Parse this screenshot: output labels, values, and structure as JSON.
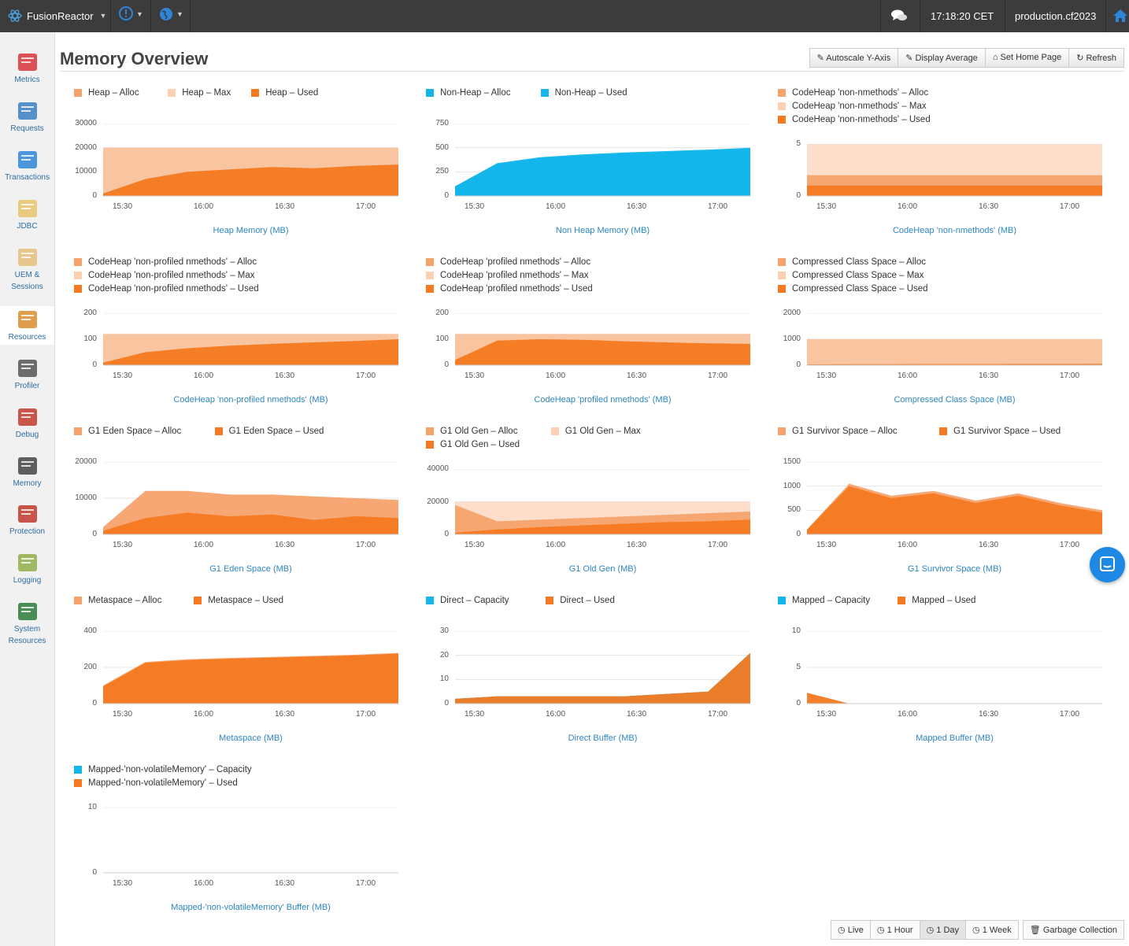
{
  "topbar": {
    "brand": "FusionReactor",
    "time": "17:18:20 CET",
    "instance": "production.cf2023",
    "icons": [
      "atom-icon",
      "alert-bubble-icon",
      "globe-icon",
      "chat-icon",
      "home-icon"
    ]
  },
  "sidebar": {
    "items": [
      {
        "label": "Metrics",
        "icon": "metrics-chart-icon"
      },
      {
        "label": "Requests",
        "icon": "requests-icon"
      },
      {
        "label": "Transactions",
        "icon": "transactions-arrows-icon"
      },
      {
        "label": "JDBC",
        "icon": "database-icon"
      },
      {
        "label": "UEM &",
        "label2": "Sessions",
        "icon": "user-icon"
      },
      {
        "label": "Resources",
        "icon": "gauge-icon"
      },
      {
        "label": "Profiler",
        "icon": "stopwatch-icon"
      },
      {
        "label": "Debug",
        "icon": "bug-target-icon"
      },
      {
        "label": "Memory",
        "icon": "memory-chip-icon"
      },
      {
        "label": "Protection",
        "icon": "shield-icon"
      },
      {
        "label": "Logging",
        "icon": "log-file-icon"
      },
      {
        "label": "System",
        "label2": "Resources",
        "icon": "system-monitor-icon"
      }
    ]
  },
  "page": {
    "title": "Memory Overview"
  },
  "toolbar": {
    "autoscale": "Autoscale Y-Axis",
    "display_average": "Display Average",
    "set_home": "Set Home Page",
    "refresh": "Refresh"
  },
  "bottom": {
    "live": "Live",
    "hour": "1 Hour",
    "day": "1 Day",
    "week": "1 Week",
    "gc": "Garbage Collection"
  },
  "colors": {
    "alloc": "#f6a26b",
    "max": "#fbd0b3",
    "used": "#f47920",
    "blue": "#13b5ea",
    "dark_used": "#d9823c"
  },
  "chart_data": [
    {
      "type": "area",
      "title": "Heap Memory (MB)",
      "x_ticks": [
        "15:30",
        "16:00",
        "16:30",
        "17:00"
      ],
      "y_ticks": [
        "30000",
        "20000",
        "10000",
        "0"
      ],
      "ylim": [
        0,
        30000
      ],
      "series": [
        {
          "name": "Heap – Alloc",
          "color": "#f6a26b",
          "values": [
            20000,
            20000,
            20000,
            20000,
            20000,
            20000,
            20000,
            20000
          ]
        },
        {
          "name": "Heap – Max",
          "color": "#fbd0b3",
          "values": [
            20000,
            20000,
            20000,
            20000,
            20000,
            20000,
            20000,
            20000
          ]
        },
        {
          "name": "Heap – Used",
          "color": "#f47920",
          "values": [
            1000,
            7000,
            10000,
            11000,
            12000,
            11500,
            12500,
            13000
          ]
        }
      ]
    },
    {
      "type": "area",
      "title": "Non Heap Memory (MB)",
      "x_ticks": [
        "15:30",
        "16:00",
        "16:30",
        "17:00"
      ],
      "y_ticks": [
        "750",
        "500",
        "250",
        "0"
      ],
      "ylim": [
        0,
        750
      ],
      "series": [
        {
          "name": "Non-Heap – Alloc",
          "color": "#13b5ea",
          "values": [
            100,
            340,
            400,
            430,
            450,
            465,
            480,
            500
          ]
        },
        {
          "name": "Non-Heap – Used",
          "color": "#13b5ea",
          "values": [
            100,
            330,
            390,
            420,
            440,
            455,
            470,
            490
          ]
        }
      ]
    },
    {
      "type": "area",
      "title": "CodeHeap 'non-nmethods' (MB)",
      "x_ticks": [
        "15:30",
        "16:00",
        "16:30",
        "17:00"
      ],
      "y_ticks": [
        "5",
        "0"
      ],
      "ylim": [
        0,
        5
      ],
      "series": [
        {
          "name": "CodeHeap 'non-nmethods' – Alloc",
          "color": "#f6a26b",
          "values": [
            2,
            2,
            2,
            2,
            2,
            2,
            2,
            2
          ]
        },
        {
          "name": "CodeHeap 'non-nmethods' – Max",
          "color": "#fbd0b3",
          "values": [
            5,
            5,
            5,
            5,
            5,
            5,
            5,
            5
          ]
        },
        {
          "name": "CodeHeap 'non-nmethods' – Used",
          "color": "#f47920",
          "values": [
            1,
            1,
            1,
            1,
            1,
            1,
            1,
            1
          ]
        }
      ]
    },
    {
      "type": "area",
      "title": "CodeHeap 'non-profiled nmethods' (MB)",
      "x_ticks": [
        "15:30",
        "16:00",
        "16:30",
        "17:00"
      ],
      "y_ticks": [
        "200",
        "100",
        "0"
      ],
      "ylim": [
        0,
        200
      ],
      "series": [
        {
          "name": "CodeHeap 'non-profiled nmethods' – Alloc",
          "color": "#f6a26b",
          "values": [
            120,
            120,
            120,
            120,
            120,
            120,
            120,
            120
          ]
        },
        {
          "name": "CodeHeap 'non-profiled nmethods' – Max",
          "color": "#fbd0b3",
          "values": [
            120,
            120,
            120,
            120,
            120,
            120,
            120,
            120
          ]
        },
        {
          "name": "CodeHeap 'non-profiled nmethods' – Used",
          "color": "#f47920",
          "values": [
            10,
            50,
            65,
            75,
            82,
            88,
            93,
            100
          ]
        }
      ]
    },
    {
      "type": "area",
      "title": "CodeHeap 'profiled nmethods' (MB)",
      "x_ticks": [
        "15:30",
        "16:00",
        "16:30",
        "17:00"
      ],
      "y_ticks": [
        "200",
        "100",
        "0"
      ],
      "ylim": [
        0,
        200
      ],
      "series": [
        {
          "name": "CodeHeap 'profiled nmethods' – Alloc",
          "color": "#f6a26b",
          "values": [
            120,
            120,
            120,
            120,
            120,
            120,
            120,
            120
          ]
        },
        {
          "name": "CodeHeap 'profiled nmethods' – Max",
          "color": "#fbd0b3",
          "values": [
            120,
            120,
            120,
            120,
            120,
            120,
            120,
            120
          ]
        },
        {
          "name": "CodeHeap 'profiled nmethods' – Used",
          "color": "#f47920",
          "values": [
            20,
            95,
            100,
            98,
            92,
            88,
            84,
            82
          ]
        }
      ]
    },
    {
      "type": "area",
      "title": "Compressed Class Space (MB)",
      "x_ticks": [
        "15:30",
        "16:00",
        "16:30",
        "17:00"
      ],
      "y_ticks": [
        "2000",
        "1000",
        "0"
      ],
      "ylim": [
        0,
        2000
      ],
      "series": [
        {
          "name": "Compressed Class Space – Alloc",
          "color": "#f6a26b",
          "values": [
            1000,
            1000,
            1000,
            1000,
            1000,
            1000,
            1000,
            1000
          ]
        },
        {
          "name": "Compressed Class Space – Max",
          "color": "#fbd0b3",
          "values": [
            1000,
            1000,
            1000,
            1000,
            1000,
            1000,
            1000,
            1000
          ]
        },
        {
          "name": "Compressed Class Space – Used",
          "color": "#f47920",
          "values": [
            30,
            40,
            40,
            45,
            45,
            48,
            48,
            50
          ]
        }
      ]
    },
    {
      "type": "area",
      "title": "G1 Eden Space (MB)",
      "x_ticks": [
        "15:30",
        "16:00",
        "16:30",
        "17:00"
      ],
      "y_ticks": [
        "20000",
        "10000",
        "0"
      ],
      "ylim": [
        0,
        20000
      ],
      "series": [
        {
          "name": "G1 Eden Space – Alloc",
          "color": "#f6a26b",
          "values": [
            2000,
            12000,
            12000,
            11000,
            11000,
            10500,
            10000,
            9500
          ]
        },
        {
          "name": "G1 Eden Space – Used",
          "color": "#f47920",
          "values": [
            1000,
            4500,
            6000,
            5000,
            5500,
            4000,
            5000,
            4500
          ]
        }
      ]
    },
    {
      "type": "area",
      "title": "G1 Old Gen (MB)",
      "x_ticks": [
        "15:30",
        "16:00",
        "16:30",
        "17:00"
      ],
      "y_ticks": [
        "40000",
        "20000",
        "0"
      ],
      "ylim": [
        0,
        40000
      ],
      "series": [
        {
          "name": "G1 Old Gen – Alloc",
          "color": "#f6a26b",
          "values": [
            18000,
            8000,
            9000,
            10000,
            11000,
            12000,
            13000,
            14000
          ]
        },
        {
          "name": "G1 Old Gen – Max",
          "color": "#fbd0b3",
          "values": [
            20000,
            20000,
            20000,
            20000,
            20000,
            20000,
            20000,
            20000
          ]
        },
        {
          "name": "G1 Old Gen – Used",
          "color": "#f47920",
          "values": [
            1000,
            3000,
            4500,
            5500,
            6500,
            7500,
            8000,
            9000
          ]
        }
      ]
    },
    {
      "type": "area",
      "title": "G1 Survivor Space (MB)",
      "x_ticks": [
        "15:30",
        "16:00",
        "16:30",
        "17:00"
      ],
      "y_ticks": [
        "1500",
        "1000",
        "500",
        "0"
      ],
      "ylim": [
        0,
        1500
      ],
      "series": [
        {
          "name": "G1 Survivor Space – Alloc",
          "color": "#f6a26b",
          "values": [
            100,
            1050,
            800,
            900,
            700,
            850,
            650,
            500
          ]
        },
        {
          "name": "G1 Survivor Space – Used",
          "color": "#f47920",
          "values": [
            100,
            1000,
            750,
            850,
            650,
            800,
            600,
            450
          ]
        }
      ]
    },
    {
      "type": "area",
      "title": "Metaspace (MB)",
      "x_ticks": [
        "15:30",
        "16:00",
        "16:30",
        "17:00"
      ],
      "y_ticks": [
        "400",
        "200",
        "0"
      ],
      "ylim": [
        0,
        400
      ],
      "series": [
        {
          "name": "Metaspace – Alloc",
          "color": "#f6a26b",
          "values": [
            100,
            230,
            245,
            252,
            258,
            264,
            270,
            280
          ]
        },
        {
          "name": "Metaspace – Used",
          "color": "#f47920",
          "values": [
            95,
            225,
            240,
            248,
            254,
            260,
            266,
            276
          ]
        }
      ]
    },
    {
      "type": "area",
      "title": "Direct Buffer (MB)",
      "x_ticks": [
        "15:30",
        "16:00",
        "16:30",
        "17:00"
      ],
      "y_ticks": [
        "30",
        "20",
        "10",
        "0"
      ],
      "ylim": [
        0,
        30
      ],
      "series": [
        {
          "name": "Direct – Capacity",
          "color": "#13b5ea",
          "values": [
            2,
            3,
            3,
            3,
            3,
            4,
            5,
            21
          ]
        },
        {
          "name": "Direct – Used",
          "color": "#f47920",
          "values": [
            2,
            3,
            3,
            3,
            3,
            4,
            5,
            21
          ]
        }
      ]
    },
    {
      "type": "area",
      "title": "Mapped Buffer (MB)",
      "x_ticks": [
        "15:30",
        "16:00",
        "16:30",
        "17:00"
      ],
      "y_ticks": [
        "10",
        "5",
        "0"
      ],
      "ylim": [
        0,
        10
      ],
      "series": [
        {
          "name": "Mapped – Capacity",
          "color": "#13b5ea",
          "values": [
            0,
            0,
            0,
            0,
            0,
            0,
            0,
            0
          ]
        },
        {
          "name": "Mapped – Used",
          "color": "#f47920",
          "values": [
            1.5,
            0,
            0,
            0,
            0,
            0,
            0,
            0
          ]
        }
      ]
    },
    {
      "type": "area",
      "title": "Mapped-'non-volatileMemory' Buffer (MB)",
      "x_ticks": [
        "15:30",
        "16:00",
        "16:30",
        "17:00"
      ],
      "y_ticks": [
        "10",
        "0"
      ],
      "ylim": [
        0,
        10
      ],
      "series": [
        {
          "name": "Mapped-'non-volatileMemory' – Capacity",
          "color": "#13b5ea",
          "values": [
            0,
            0,
            0,
            0,
            0,
            0,
            0,
            0
          ]
        },
        {
          "name": "Mapped-'non-volatileMemory' – Used",
          "color": "#f47920",
          "values": [
            0,
            0,
            0,
            0,
            0,
            0,
            0,
            0
          ]
        }
      ]
    }
  ]
}
